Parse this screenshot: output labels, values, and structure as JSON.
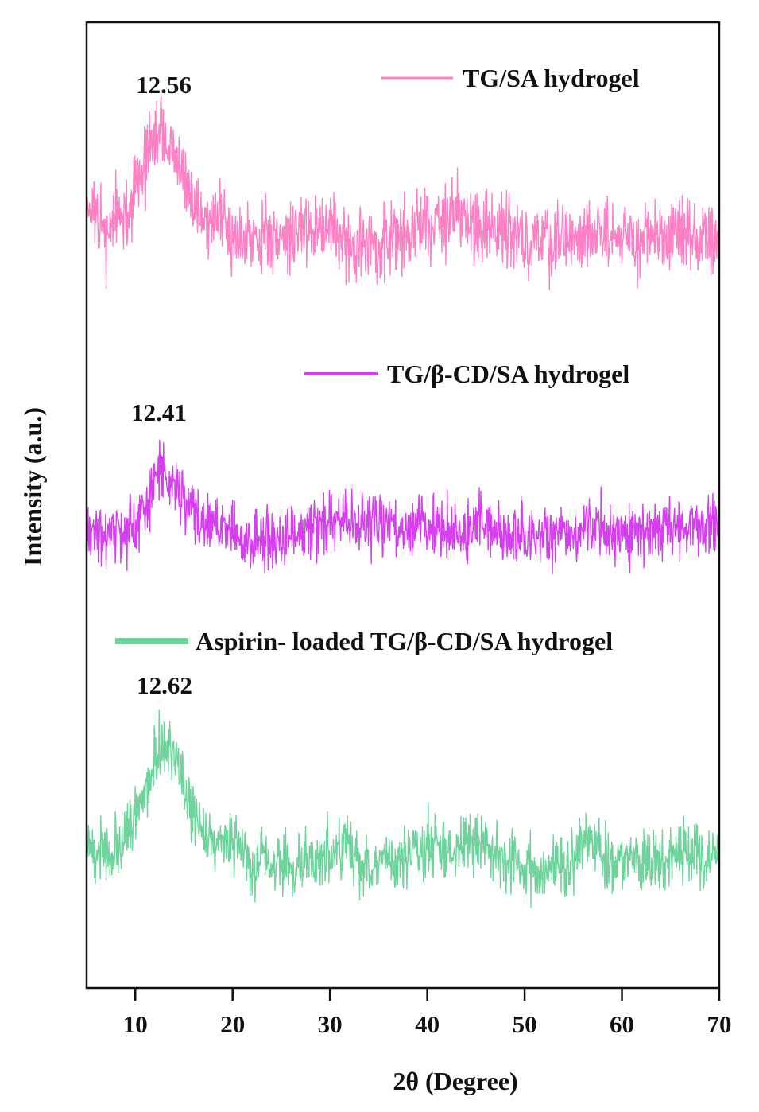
{
  "chart_data": {
    "type": "line",
    "title": "",
    "xlabel": "2θ (Degree)",
    "ylabel": "Intensity (a.u.)",
    "xlim": [
      5,
      70
    ],
    "ylim": [
      0,
      100
    ],
    "xticks": [
      "10",
      "20",
      "30",
      "40",
      "50",
      "60",
      "70"
    ],
    "xtick_values": [
      10,
      20,
      30,
      40,
      50,
      60,
      70
    ],
    "grid": false,
    "legend_placement": "above each trace",
    "series": [
      {
        "name": "TG/SA hydrogel",
        "color": "#ff80c4",
        "peak_label": "12.56",
        "peak_x": 12.56,
        "noise": 2.4,
        "seed": 11,
        "envelope": [
          [
            5,
            82
          ],
          [
            6,
            79
          ],
          [
            7,
            78
          ],
          [
            8,
            80
          ],
          [
            9,
            79
          ],
          [
            10,
            83
          ],
          [
            11,
            85.5
          ],
          [
            12.5,
            88.8
          ],
          [
            14,
            86
          ],
          [
            15.5,
            82
          ],
          [
            17,
            80
          ],
          [
            20,
            78.5
          ],
          [
            25,
            77.5
          ],
          [
            28,
            79
          ],
          [
            30,
            79
          ],
          [
            32,
            76.5
          ],
          [
            35,
            77
          ],
          [
            38,
            78
          ],
          [
            40,
            79.5
          ],
          [
            43,
            80
          ],
          [
            45,
            79
          ],
          [
            48,
            78.5
          ],
          [
            50,
            77.5
          ],
          [
            55,
            77.5
          ],
          [
            56.5,
            79
          ],
          [
            58,
            78
          ],
          [
            62,
            77.5
          ],
          [
            66,
            77.5
          ],
          [
            70,
            77.2
          ]
        ]
      },
      {
        "name": "TG/β-CD/SA hydrogel",
        "color": "#d63ff0",
        "peak_label": "12.41",
        "peak_x": 12.41,
        "noise": 1.9,
        "seed": 23,
        "envelope": [
          [
            5,
            47.5
          ],
          [
            7,
            46.5
          ],
          [
            9,
            47
          ],
          [
            10.5,
            48.5
          ],
          [
            12.4,
            53.5
          ],
          [
            14,
            52
          ],
          [
            16,
            49
          ],
          [
            19,
            47.5
          ],
          [
            22,
            46.5
          ],
          [
            25,
            46.5
          ],
          [
            28,
            47.5
          ],
          [
            30,
            48.5
          ],
          [
            32,
            48
          ],
          [
            35,
            47.5
          ],
          [
            40,
            47.5
          ],
          [
            45,
            47.5
          ],
          [
            45.5,
            49
          ],
          [
            47,
            47
          ],
          [
            50,
            47
          ],
          [
            55,
            46.5
          ],
          [
            56.5,
            48
          ],
          [
            60,
            47
          ],
          [
            65,
            47.5
          ],
          [
            70,
            47.8
          ]
        ]
      },
      {
        "name": "Aspirin- loaded TG/β-CD/SA hydrogel",
        "color": "#6fd49c",
        "peak_label": "12.62",
        "peak_x": 12.62,
        "noise": 2.0,
        "seed": 37,
        "envelope": [
          [
            5,
            15.5
          ],
          [
            6,
            14
          ],
          [
            8,
            14
          ],
          [
            9.5,
            17
          ],
          [
            11,
            20
          ],
          [
            12.6,
            25.5
          ],
          [
            14,
            24
          ],
          [
            15.5,
            19
          ],
          [
            17,
            16.5
          ],
          [
            20,
            14.5
          ],
          [
            22,
            13
          ],
          [
            25,
            12.5
          ],
          [
            28,
            13.5
          ],
          [
            30,
            14
          ],
          [
            31.8,
            15
          ],
          [
            33,
            13
          ],
          [
            36,
            13
          ],
          [
            40,
            14.8
          ],
          [
            43,
            14.5
          ],
          [
            45.5,
            15.5
          ],
          [
            47,
            13.5
          ],
          [
            50,
            12.5
          ],
          [
            55,
            13
          ],
          [
            56.5,
            15.5
          ],
          [
            58,
            13.5
          ],
          [
            62,
            13
          ],
          [
            66,
            13.8
          ],
          [
            70,
            13.5
          ]
        ]
      }
    ]
  }
}
